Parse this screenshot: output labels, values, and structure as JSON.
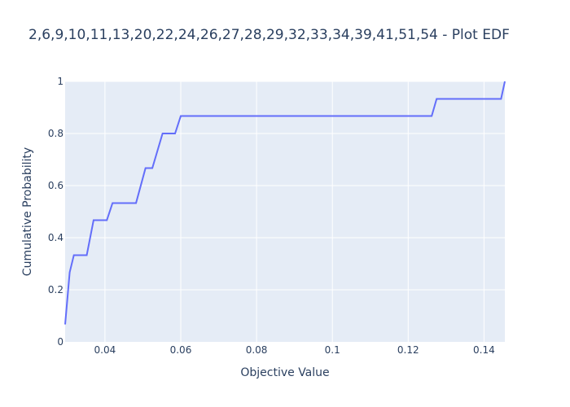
{
  "chart_data": {
    "type": "line",
    "title": "2,6,9,10,11,13,20,22,24,26,27,28,29,32,33,34,39,41,51,54 - Plot EDF",
    "xlabel": "Objective Value",
    "ylabel": "Cumulative Probability",
    "xlim": [
      0.0295,
      0.1455
    ],
    "ylim": [
      0,
      1
    ],
    "x_ticks": [
      0.04,
      0.06,
      0.08,
      0.1,
      0.12,
      0.14
    ],
    "x_tick_labels": [
      "0.04",
      "0.06",
      "0.08",
      "0.1",
      "0.12",
      "0.14"
    ],
    "y_ticks": [
      0,
      0.2,
      0.4,
      0.6,
      0.8,
      1
    ],
    "y_tick_labels": [
      "0",
      "0.2",
      "0.4",
      "0.6",
      "0.8",
      "1"
    ],
    "grid": true,
    "background": "#e5ecf6",
    "line_color": "#636efa",
    "series": [
      {
        "x": [
          0.0295,
          0.0307,
          0.0318,
          0.0352,
          0.037,
          0.0405,
          0.042,
          0.0482,
          0.0507,
          0.0525,
          0.0552,
          0.0585,
          0.06,
          0.1262,
          0.1275,
          0.1445,
          0.1455
        ],
        "y": [
          0.067,
          0.267,
          0.333,
          0.333,
          0.467,
          0.467,
          0.533,
          0.533,
          0.667,
          0.667,
          0.8,
          0.8,
          0.867,
          0.867,
          0.933,
          0.933,
          1.0
        ]
      }
    ]
  }
}
